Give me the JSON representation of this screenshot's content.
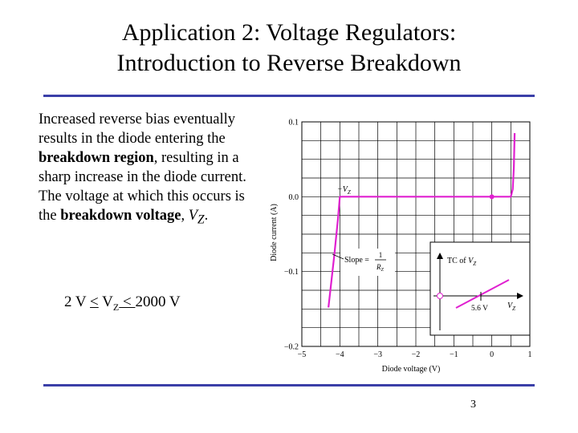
{
  "slide": {
    "title_line1": "Application 2: Voltage Regulators:",
    "title_line2": "Introduction to Reverse Breakdown",
    "para": {
      "t1": "Increased reverse bias eventually results in the diode entering the ",
      "b1": "breakdown region",
      "t2": ", resulting in a sharp increase in the diode current. The voltage at which this occurs is the ",
      "b2": "breakdown voltage",
      "t3": ", ",
      "vz_v": "V",
      "vz_sub": "Z",
      "t4": "."
    },
    "formula": {
      "left": "2 V ",
      "op1": "<",
      "mid_v": " V",
      "mid_sub": "Z",
      "op2": " < ",
      "right": "2000 V"
    },
    "page_number": "3"
  },
  "colors": {
    "accent_rule": "#3b3fa8",
    "curve": "#e020d0",
    "grid": "#000000"
  },
  "chart_data": {
    "type": "line",
    "xlabel": "Diode voltage (V)",
    "ylabel": "Diode current (A)",
    "xlim": [
      -5,
      1
    ],
    "ylim": [
      -0.2,
      0.1
    ],
    "x_ticks": [
      -5,
      -4,
      -3,
      -2,
      -1,
      0,
      1
    ],
    "x_tick_labels": [
      "−5",
      "−4",
      "−3",
      "−2",
      "−1",
      "0",
      "1"
    ],
    "y_ticks": [
      0.1,
      0.0,
      -0.1,
      -0.2
    ],
    "y_tick_labels": [
      "0.1",
      "0.0",
      "−0.1",
      "−0.2"
    ],
    "grid": true,
    "series": [
      {
        "x": [
          -4.3,
          -4.15,
          -4.05,
          -4.0,
          -3.5,
          -2.0,
          0.0,
          0.5,
          0.55,
          0.58,
          0.6
        ],
        "y": [
          -0.148,
          -0.08,
          -0.03,
          0.0,
          0.0,
          0.0,
          0.0,
          0.0,
          0.01,
          0.04,
          0.085
        ]
      }
    ],
    "point_marker": {
      "x": 0.0,
      "y": 0.0
    },
    "annotations": {
      "vz_label": {
        "v": "−V",
        "sub": "Z"
      },
      "slope_label": {
        "text": "Slope = ",
        "num": "1",
        "den_v": "R",
        "den_sub": "Z"
      }
    },
    "inset": {
      "y_label_text": "TC of ",
      "y_label_v": "V",
      "y_label_sub": "Z",
      "x_label_v": "V",
      "x_label_sub": "Z",
      "marker_label": "5.6 V"
    }
  }
}
